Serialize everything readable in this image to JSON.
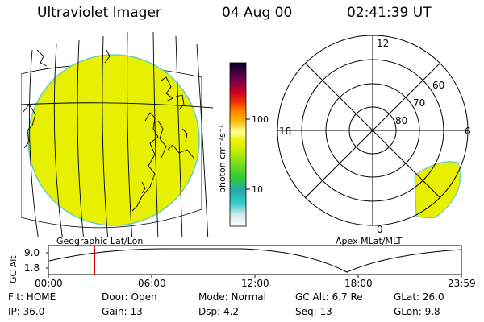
{
  "header": {
    "instrument": "Ultraviolet Imager",
    "date": "04 Aug 00",
    "time": "02:41:39 UT"
  },
  "colorbar": {
    "unit_label": "photon cm⁻²s⁻¹",
    "tick_100": "100",
    "tick_10": "10"
  },
  "map_left": {
    "caption": "Geographic Lat/Lon"
  },
  "polar_map": {
    "caption": "Apex MLat/MLT",
    "mlt_labels": {
      "top": "12",
      "left": "18",
      "right": "6",
      "bottom": "0"
    },
    "lat_labels": [
      "60",
      "70",
      "80"
    ]
  },
  "timeline": {
    "axis_label": "GC Alt",
    "y_ticks": [
      "9.0",
      "1.8"
    ],
    "x_ticks": [
      "00:00",
      "06:00",
      "12:00",
      "18:00",
      "23:59"
    ],
    "current_marker_hours": 2.69
  },
  "info": {
    "flt": "Flt: HOME",
    "ip": "IP: 36.0",
    "door": "Door: Open",
    "gain": "Gain: 13",
    "mode": "Mode: Normal",
    "dsp": "Dsp:    4.2",
    "gcalt": "GC Alt: 6.7 Re",
    "seq": "Seq: 13",
    "glat": "GLat:   26.0",
    "glon": "GLon:    9.8"
  },
  "colors": {
    "emission": "#e6f000",
    "limb": "#66cccc"
  }
}
